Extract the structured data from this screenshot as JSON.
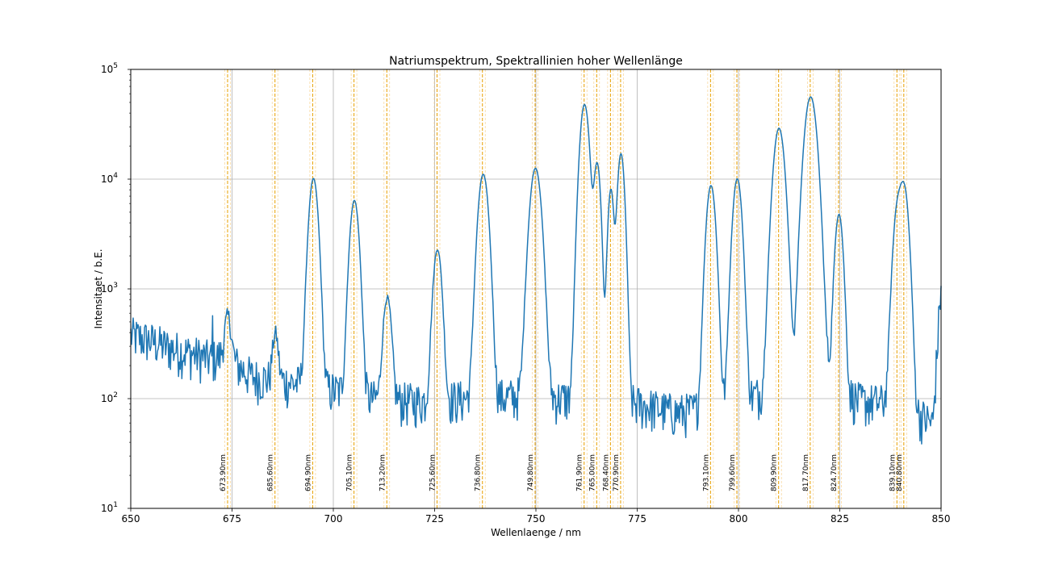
{
  "chart_data": {
    "type": "line",
    "title": "Natriumspektrum, Spektrallinien hoher Wellenlänge",
    "xlabel": "Wellenlaenge / nm",
    "ylabel": "Intensitaet / b.E.",
    "xlim": [
      650,
      850
    ],
    "ylim": [
      10,
      100000
    ],
    "yscale": "log",
    "grid": true,
    "x_ticks": [
      650,
      675,
      700,
      725,
      750,
      775,
      800,
      825,
      850
    ],
    "x_tick_labels": [
      "650",
      "675",
      "700",
      "725",
      "750",
      "775",
      "800",
      "825",
      "850"
    ],
    "y_ticks": [
      10,
      100,
      1000,
      10000,
      100000
    ],
    "y_tick_exponents": [
      "1",
      "2",
      "3",
      "4",
      "5"
    ],
    "y_tick_base": "10",
    "series_color": "#1f77b4",
    "reference_line_color": "#e8a000",
    "reference_band_color": "#f5c97a",
    "baseline": [
      [
        650,
        380
      ],
      [
        655,
        340
      ],
      [
        660,
        290
      ],
      [
        665,
        260
      ],
      [
        670,
        230
      ],
      [
        673,
        250
      ],
      [
        680,
        160
      ],
      [
        690,
        140
      ],
      [
        700,
        120
      ],
      [
        710,
        100
      ],
      [
        720,
        95
      ],
      [
        730,
        100
      ],
      [
        745,
        105
      ],
      [
        760,
        100
      ],
      [
        775,
        90
      ],
      [
        785,
        75
      ],
      [
        790,
        80
      ],
      [
        800,
        100
      ],
      [
        810,
        120
      ],
      [
        820,
        200
      ],
      [
        825,
        120
      ],
      [
        830,
        95
      ],
      [
        840,
        90
      ],
      [
        848,
        60
      ],
      [
        850,
        1200
      ]
    ],
    "peaks": [
      {
        "center": 674.0,
        "height": 330,
        "width": 0.7
      },
      {
        "center": 685.7,
        "height": 250,
        "width": 0.6
      },
      {
        "center": 695.1,
        "height": 10000,
        "width": 0.9
      },
      {
        "center": 705.2,
        "height": 6300,
        "width": 0.9
      },
      {
        "center": 713.3,
        "height": 740,
        "width": 0.8
      },
      {
        "center": 725.7,
        "height": 2200,
        "width": 0.85
      },
      {
        "center": 737.0,
        "height": 11000,
        "width": 1.0
      },
      {
        "center": 749.9,
        "height": 12500,
        "width": 1.1
      },
      {
        "center": 762.0,
        "height": 48000,
        "width": 0.9
      },
      {
        "center": 765.1,
        "height": 14000,
        "width": 0.7
      },
      {
        "center": 768.5,
        "height": 8000,
        "width": 0.6
      },
      {
        "center": 771.0,
        "height": 17000,
        "width": 0.7
      },
      {
        "center": 793.2,
        "height": 8700,
        "width": 0.9
      },
      {
        "center": 799.7,
        "height": 10000,
        "width": 0.9
      },
      {
        "center": 810.0,
        "height": 29000,
        "width": 1.1
      },
      {
        "center": 817.8,
        "height": 56000,
        "width": 1.2
      },
      {
        "center": 824.8,
        "height": 4700,
        "width": 0.8
      },
      {
        "center": 839.3,
        "height": 5300,
        "width": 0.9
      },
      {
        "center": 840.9,
        "height": 8000,
        "width": 0.9
      }
    ],
    "spike": {
      "x": 670.2,
      "y": 570
    },
    "reference_lines": [
      {
        "x": 673.9,
        "label": "673.90nm"
      },
      {
        "x": 685.6,
        "label": "685.60nm"
      },
      {
        "x": 694.9,
        "label": "694.90nm"
      },
      {
        "x": 705.1,
        "label": "705.10nm"
      },
      {
        "x": 713.2,
        "label": "713.20nm"
      },
      {
        "x": 725.6,
        "label": "725.60nm"
      },
      {
        "x": 736.8,
        "label": "736.80nm"
      },
      {
        "x": 749.8,
        "label": "749.80nm"
      },
      {
        "x": 761.9,
        "label": "761.90nm"
      },
      {
        "x": 765.0,
        "label": "765.00nm"
      },
      {
        "x": 768.4,
        "label": "768.40nm"
      },
      {
        "x": 770.9,
        "label": "770.90nm"
      },
      {
        "x": 793.1,
        "label": "793.10nm"
      },
      {
        "x": 799.6,
        "label": "799.60nm"
      },
      {
        "x": 809.9,
        "label": "809.90nm"
      },
      {
        "x": 817.7,
        "label": "817.70nm"
      },
      {
        "x": 824.7,
        "label": "824.70nm"
      },
      {
        "x": 839.1,
        "label": "839.10nm"
      },
      {
        "x": 840.8,
        "label": "840.80nm"
      }
    ]
  }
}
